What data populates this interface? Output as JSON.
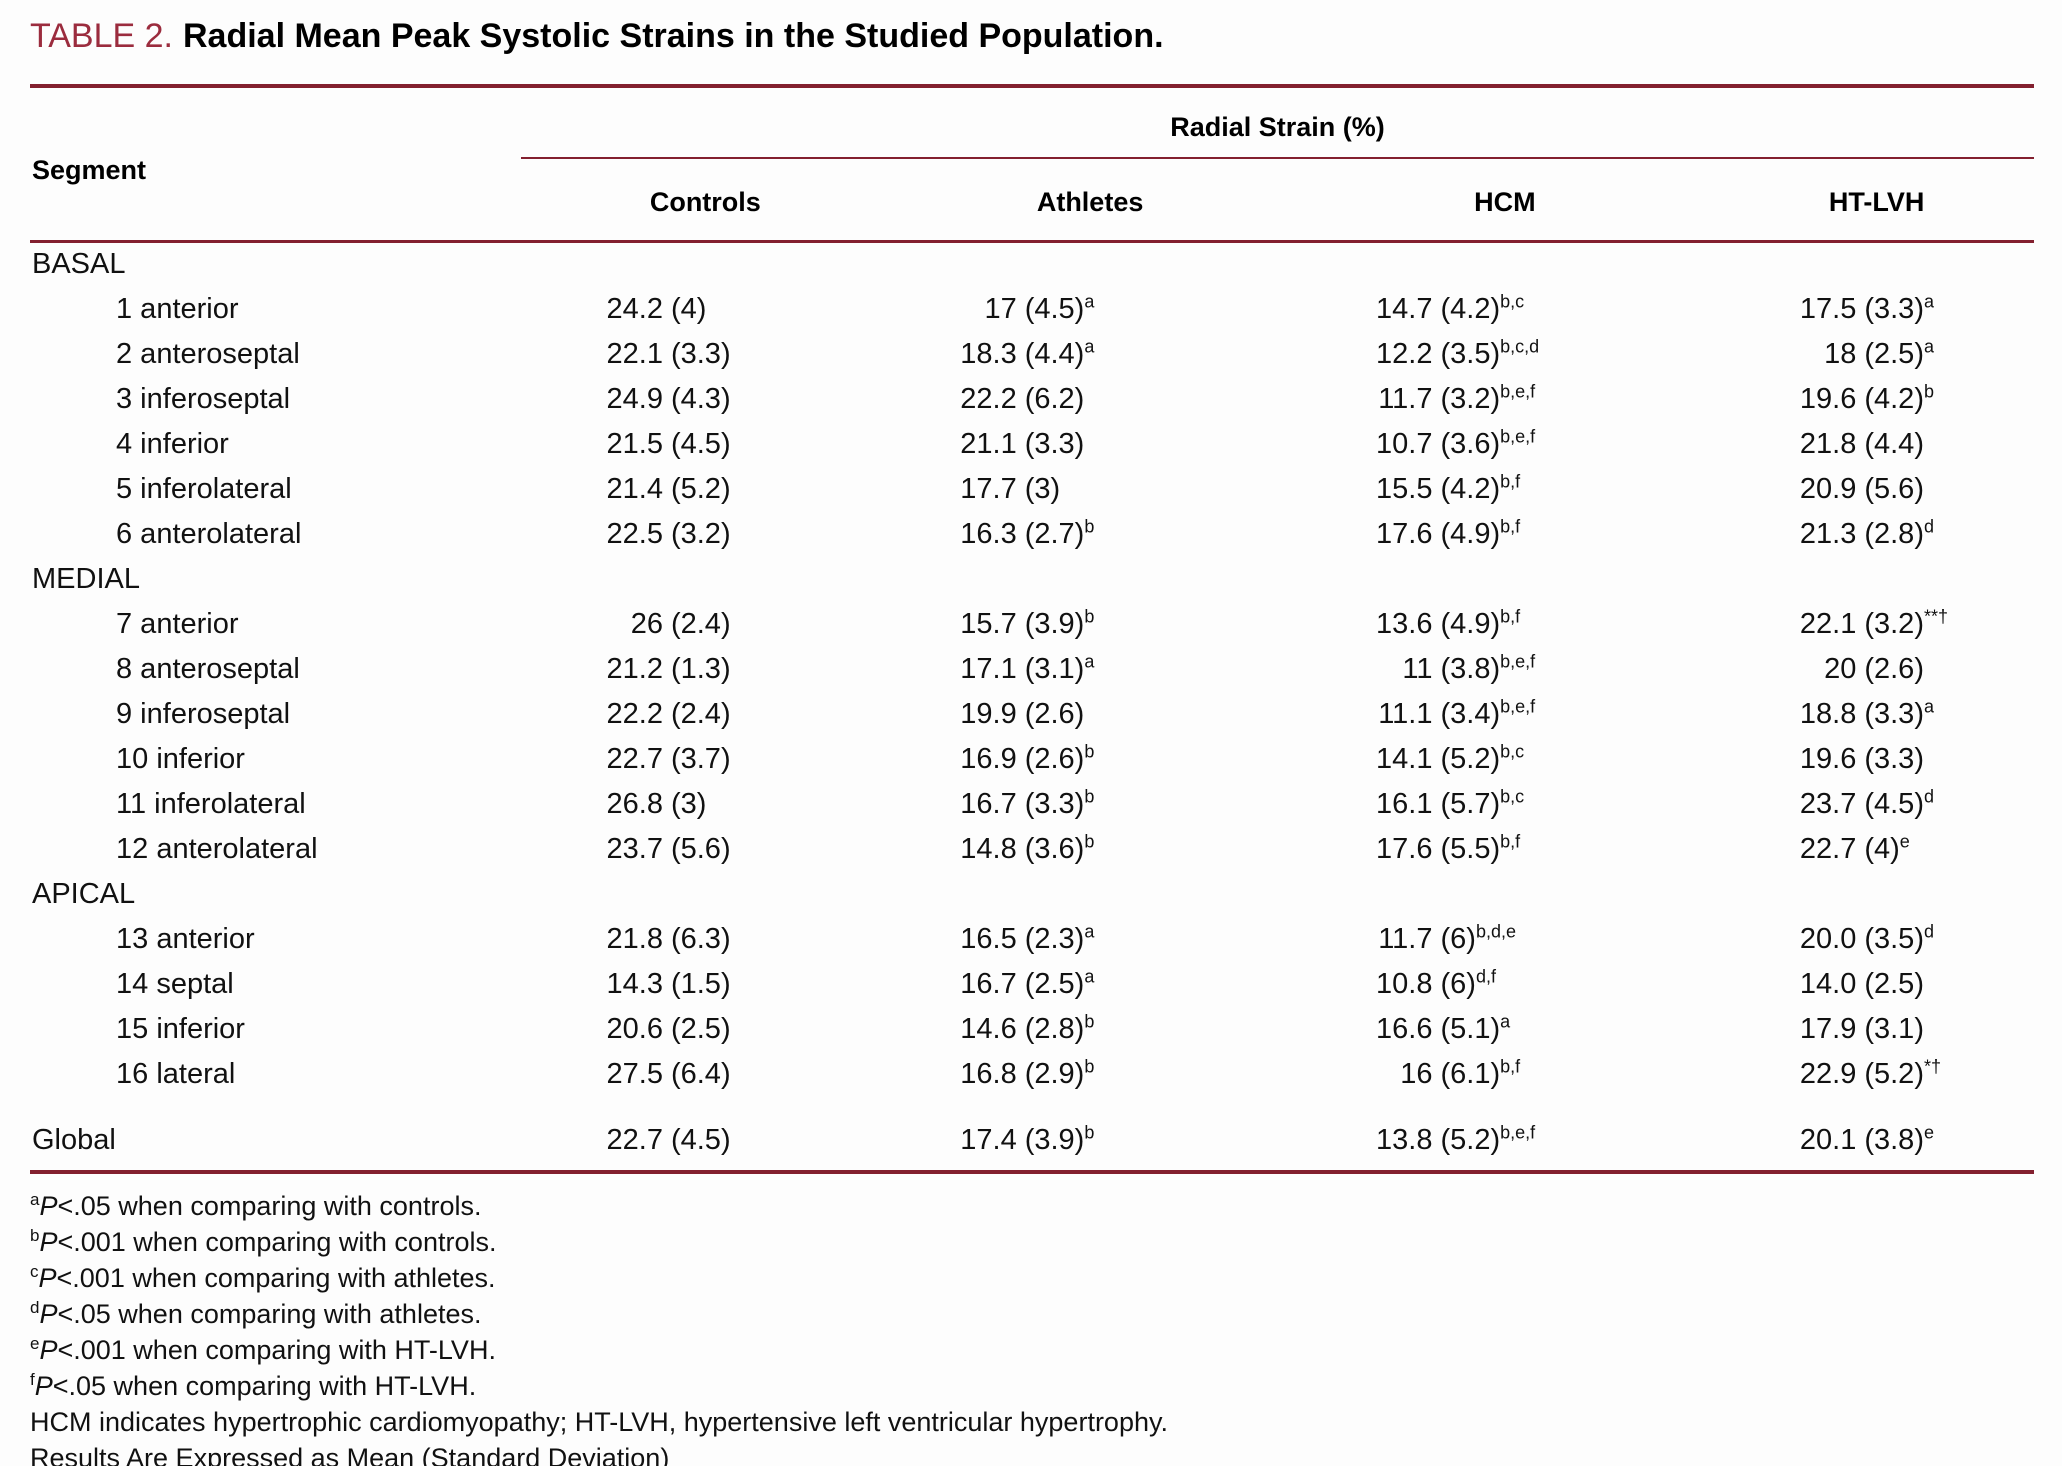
{
  "colors": {
    "rule_accent": "#83202F",
    "title_accent": "#9B2C3E"
  },
  "title": {
    "label": "TABLE 2.",
    "text": "Radial Mean Peak Systolic Strains in the Studied Population."
  },
  "table": {
    "segment_header": "Segment",
    "spanner": "Radial Strain (%)",
    "columns": [
      "Controls",
      "Athletes",
      "HCM",
      "HT-LVH"
    ],
    "sections": [
      {
        "name": "BASAL",
        "rows": [
          {
            "segment": "1 anterior",
            "values": [
              {
                "mean": "24.2",
                "sd": "(4)",
                "sup": ""
              },
              {
                "mean": "17",
                "sd": "(4.5)",
                "sup": "a"
              },
              {
                "mean": "14.7",
                "sd": "(4.2)",
                "sup": "b,c"
              },
              {
                "mean": "17.5",
                "sd": "(3.3)",
                "sup": "a"
              }
            ]
          },
          {
            "segment": "2 anteroseptal",
            "values": [
              {
                "mean": "22.1",
                "sd": "(3.3)",
                "sup": ""
              },
              {
                "mean": "18.3",
                "sd": "(4.4)",
                "sup": "a"
              },
              {
                "mean": "12.2",
                "sd": "(3.5)",
                "sup": "b,c,d"
              },
              {
                "mean": "18",
                "sd": "(2.5)",
                "sup": "a"
              }
            ]
          },
          {
            "segment": "3 inferoseptal",
            "values": [
              {
                "mean": "24.9",
                "sd": "(4.3)",
                "sup": ""
              },
              {
                "mean": "22.2",
                "sd": "(6.2)",
                "sup": ""
              },
              {
                "mean": "11.7",
                "sd": "(3.2)",
                "sup": "b,e,f"
              },
              {
                "mean": "19.6",
                "sd": "(4.2)",
                "sup": "b"
              }
            ]
          },
          {
            "segment": "4 inferior",
            "values": [
              {
                "mean": "21.5",
                "sd": "(4.5)",
                "sup": ""
              },
              {
                "mean": "21.1",
                "sd": "(3.3)",
                "sup": ""
              },
              {
                "mean": "10.7",
                "sd": "(3.6)",
                "sup": "b,e,f"
              },
              {
                "mean": "21.8",
                "sd": "(4.4)",
                "sup": ""
              }
            ]
          },
          {
            "segment": "5 inferolateral",
            "values": [
              {
                "mean": "21.4",
                "sd": "(5.2)",
                "sup": ""
              },
              {
                "mean": "17.7",
                "sd": "(3)",
                "sup": ""
              },
              {
                "mean": "15.5",
                "sd": "(4.2)",
                "sup": "b,f"
              },
              {
                "mean": "20.9",
                "sd": "(5.6)",
                "sup": ""
              }
            ]
          },
          {
            "segment": "6 anterolateral",
            "values": [
              {
                "mean": "22.5",
                "sd": "(3.2)",
                "sup": ""
              },
              {
                "mean": "16.3",
                "sd": "(2.7)",
                "sup": "b"
              },
              {
                "mean": "17.6",
                "sd": "(4.9)",
                "sup": "b,f"
              },
              {
                "mean": "21.3",
                "sd": "(2.8)",
                "sup": "d"
              }
            ]
          }
        ]
      },
      {
        "name": "MEDIAL",
        "rows": [
          {
            "segment": "7 anterior",
            "values": [
              {
                "mean": "26",
                "sd": "(2.4)",
                "sup": ""
              },
              {
                "mean": "15.7",
                "sd": "(3.9)",
                "sup": "b"
              },
              {
                "mean": "13.6",
                "sd": "(4.9)",
                "sup": "b,f"
              },
              {
                "mean": "22.1",
                "sd": "(3.2)",
                "sup": "**†"
              }
            ]
          },
          {
            "segment": "8 anteroseptal",
            "values": [
              {
                "mean": "21.2",
                "sd": "(1.3)",
                "sup": ""
              },
              {
                "mean": "17.1",
                "sd": "(3.1)",
                "sup": "a"
              },
              {
                "mean": "11",
                "sd": "(3.8)",
                "sup": "b,e,f"
              },
              {
                "mean": "20",
                "sd": "(2.6)",
                "sup": ""
              }
            ]
          },
          {
            "segment": "9 inferoseptal",
            "values": [
              {
                "mean": "22.2",
                "sd": "(2.4)",
                "sup": ""
              },
              {
                "mean": "19.9",
                "sd": "(2.6)",
                "sup": ""
              },
              {
                "mean": "11.1",
                "sd": "(3.4)",
                "sup": "b,e,f"
              },
              {
                "mean": "18.8",
                "sd": "(3.3)",
                "sup": "a"
              }
            ]
          },
          {
            "segment": "10 inferior",
            "values": [
              {
                "mean": "22.7",
                "sd": "(3.7)",
                "sup": ""
              },
              {
                "mean": "16.9",
                "sd": "(2.6)",
                "sup": "b"
              },
              {
                "mean": "14.1",
                "sd": "(5.2)",
                "sup": "b,c"
              },
              {
                "mean": "19.6",
                "sd": "(3.3)",
                "sup": ""
              }
            ]
          },
          {
            "segment": "11 inferolateral",
            "values": [
              {
                "mean": "26.8",
                "sd": "(3)",
                "sup": ""
              },
              {
                "mean": "16.7",
                "sd": "(3.3)",
                "sup": "b"
              },
              {
                "mean": "16.1",
                "sd": "(5.7)",
                "sup": "b,c"
              },
              {
                "mean": "23.7",
                "sd": "(4.5)",
                "sup": "d"
              }
            ]
          },
          {
            "segment": "12 anterolateral",
            "values": [
              {
                "mean": "23.7",
                "sd": "(5.6)",
                "sup": ""
              },
              {
                "mean": "14.8",
                "sd": "(3.6)",
                "sup": "b"
              },
              {
                "mean": "17.6",
                "sd": "(5.5)",
                "sup": "b,f"
              },
              {
                "mean": "22.7",
                "sd": "(4)",
                "sup": "e"
              }
            ]
          }
        ]
      },
      {
        "name": "APICAL",
        "rows": [
          {
            "segment": "13 anterior",
            "values": [
              {
                "mean": "21.8",
                "sd": "(6.3)",
                "sup": ""
              },
              {
                "mean": "16.5",
                "sd": "(2.3)",
                "sup": "a"
              },
              {
                "mean": "11.7",
                "sd": "(6)",
                "sup": "b,d,e"
              },
              {
                "mean": "20.0",
                "sd": "(3.5)",
                "sup": "d"
              }
            ]
          },
          {
            "segment": "14 septal",
            "values": [
              {
                "mean": "14.3",
                "sd": "(1.5)",
                "sup": ""
              },
              {
                "mean": "16.7",
                "sd": "(2.5)",
                "sup": "a"
              },
              {
                "mean": "10.8",
                "sd": "(6)",
                "sup": "d,f"
              },
              {
                "mean": "14.0",
                "sd": "(2.5)",
                "sup": ""
              }
            ]
          },
          {
            "segment": "15 inferior",
            "values": [
              {
                "mean": "20.6",
                "sd": "(2.5)",
                "sup": ""
              },
              {
                "mean": "14.6",
                "sd": "(2.8)",
                "sup": "b"
              },
              {
                "mean": "16.6",
                "sd": "(5.1)",
                "sup": "a"
              },
              {
                "mean": "17.9",
                "sd": "(3.1)",
                "sup": ""
              }
            ]
          },
          {
            "segment": "16 lateral",
            "values": [
              {
                "mean": "27.5",
                "sd": "(6.4)",
                "sup": ""
              },
              {
                "mean": "16.8",
                "sd": "(2.9)",
                "sup": "b"
              },
              {
                "mean": "16",
                "sd": "(6.1)",
                "sup": "b,f"
              },
              {
                "mean": "22.9",
                "sd": "(5.2)",
                "sup": "*†"
              }
            ]
          }
        ]
      }
    ],
    "global_row": {
      "segment": "Global",
      "values": [
        {
          "mean": "22.7",
          "sd": "(4.5)",
          "sup": ""
        },
        {
          "mean": "17.4",
          "sd": "(3.9)",
          "sup": "b"
        },
        {
          "mean": "13.8",
          "sd": "(5.2)",
          "sup": "b,e,f"
        },
        {
          "mean": "20.1",
          "sd": "(3.8)",
          "sup": "e"
        }
      ]
    }
  },
  "footnotes": [
    {
      "sup": "a",
      "p": "P",
      "text": "<.05 when comparing with controls."
    },
    {
      "sup": "b",
      "p": "P",
      "text": "<.001 when comparing with controls."
    },
    {
      "sup": "c",
      "p": "P",
      "text": "<.001 when comparing with athletes."
    },
    {
      "sup": "d",
      "p": "P",
      "text": "<.05 when comparing with athletes."
    },
    {
      "sup": "e",
      "p": "P",
      "text": "<.001 when comparing with HT-LVH."
    },
    {
      "sup": "f",
      "p": "P",
      "text": "<.05 when comparing with HT-LVH."
    },
    {
      "sup": "",
      "p": "",
      "text": "HCM indicates hypertrophic cardiomyopathy; HT-LVH, hypertensive left ventricular hypertrophy."
    },
    {
      "sup": "",
      "p": "",
      "text": "Results Are Expressed as Mean (Standard Deviation)"
    }
  ]
}
